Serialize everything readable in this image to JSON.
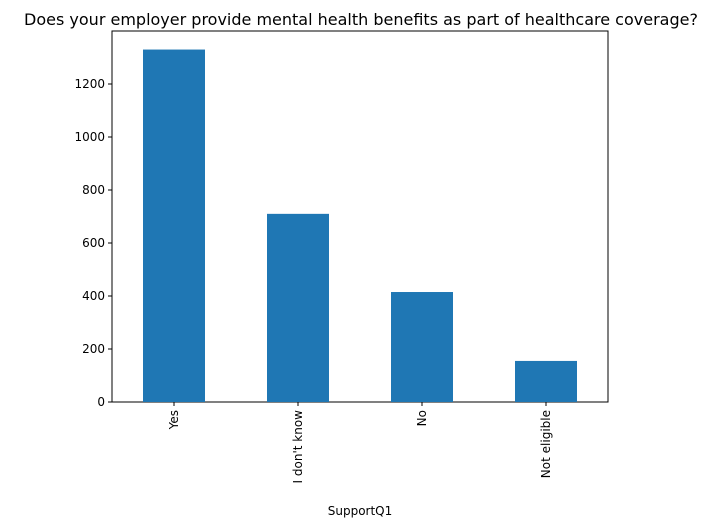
{
  "chart_data": {
    "type": "bar",
    "title": "Does your employer provide mental health benefits as part of healthcare coverage?",
    "xlabel": "SupportQ1",
    "ylabel": "",
    "categories": [
      "Yes",
      "I don't know",
      "No",
      "Not eligible"
    ],
    "values": [
      1330,
      710,
      415,
      155
    ],
    "ylim": [
      0,
      1400
    ],
    "yticks": [
      0,
      200,
      400,
      600,
      800,
      1000,
      1200
    ],
    "bar_color": "#1f77b4",
    "grid": false,
    "legend": "none"
  }
}
